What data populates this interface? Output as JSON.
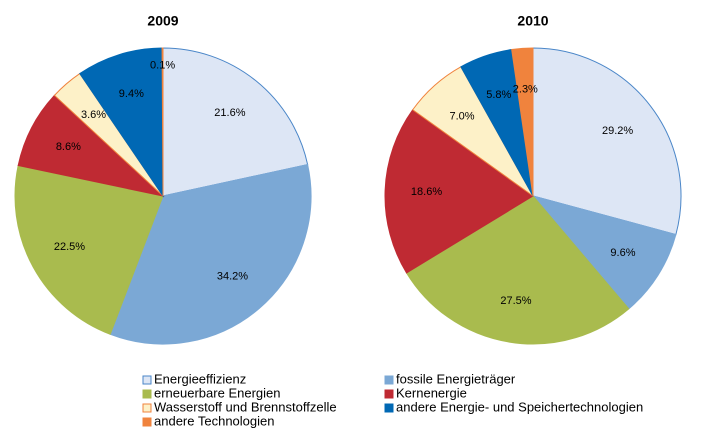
{
  "chart_data": [
    {
      "type": "pie",
      "title": "2009",
      "categories": [
        "Energieeffizienz",
        "fossile Energieträger",
        "erneuerbare Energien",
        "Kernenergie",
        "Wasserstoff und Brennstoffzelle",
        "andere Energie- und Speichertechnologien",
        "andere Technologien"
      ],
      "values": [
        21.6,
        34.2,
        22.5,
        8.6,
        3.6,
        9.4,
        0.1
      ],
      "value_labels": [
        "21.6%",
        "34.2%",
        "22.5%",
        "8.6%",
        "3.6%",
        "9.4%",
        "0.1%"
      ],
      "colors": [
        "#dde6f5",
        "#7ba8d5",
        "#a9bb4e",
        "#bf2a33",
        "#fdf1c8",
        "#0068b4",
        "#f0833d"
      ]
    },
    {
      "type": "pie",
      "title": "2010",
      "categories": [
        "Energieeffizienz",
        "fossile Energieträger",
        "erneuerbare Energien",
        "Kernenergie",
        "Wasserstoff und Brennstoffzelle",
        "andere Energie- und Speichertechnologien",
        "andere Technologien"
      ],
      "values": [
        29.2,
        9.6,
        27.5,
        18.6,
        7.0,
        5.8,
        2.3
      ],
      "value_labels": [
        "29.2%",
        "9.6%",
        "27.5%",
        "18.6%",
        "7.0%",
        "5.8%",
        "2.3%"
      ],
      "colors": [
        "#dde6f5",
        "#7ba8d5",
        "#a9bb4e",
        "#bf2a33",
        "#fdf1c8",
        "#0068b4",
        "#f0833d"
      ]
    }
  ]
}
